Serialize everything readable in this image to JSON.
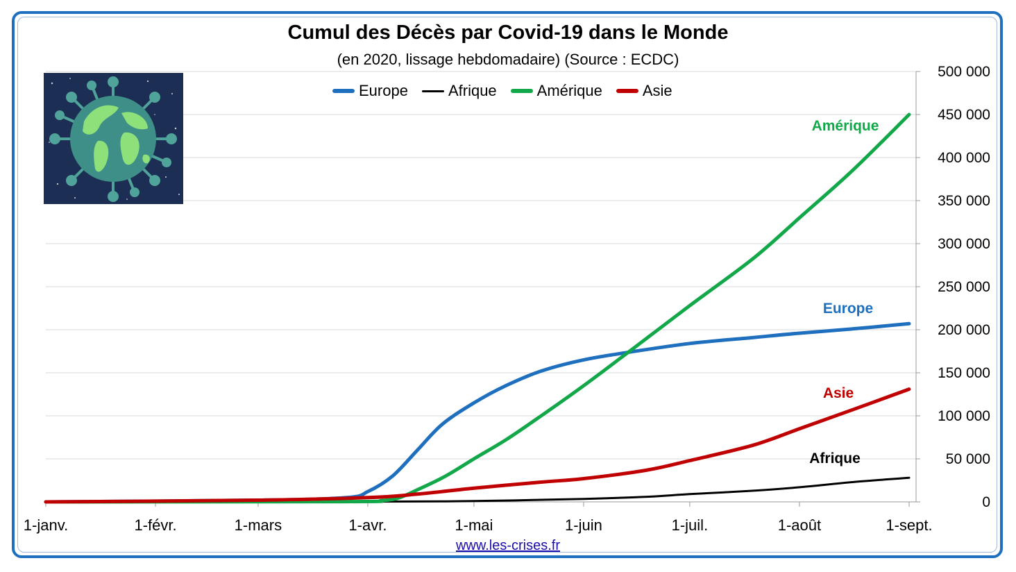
{
  "chart_data": {
    "type": "line",
    "title": "Cumul des Décès par Covid-19 dans le Monde",
    "subtitle": "(en 2020, lissage hebdomadaire) (Source : ECDC)",
    "x_ticks": [
      "1-janv.",
      "1-févr.",
      "1-mars",
      "1-avr.",
      "1-mai",
      "1-juin",
      "1-juil.",
      "1-août",
      "1-sept."
    ],
    "x_tick_days": [
      0,
      31,
      60,
      91,
      121,
      152,
      182,
      213,
      244
    ],
    "xlim": [
      0,
      244
    ],
    "y_ticks": [
      "0",
      "50 000",
      "100 000",
      "150 000",
      "200 000",
      "250 000",
      "300 000",
      "350 000",
      "400 000",
      "450 000",
      "500 000"
    ],
    "ylim": [
      0,
      500000
    ],
    "y_axis_side": "right",
    "grid": true,
    "legend_position": "top",
    "series": [
      {
        "name": "Europe",
        "color": "#1f6fbf",
        "label": "Europe",
        "x": [
          0,
          60,
          85,
          91,
          98,
          105,
          112,
          121,
          130,
          140,
          152,
          165,
          182,
          200,
          213,
          228,
          244
        ],
        "y": [
          0,
          2000,
          5000,
          12000,
          30000,
          60000,
          90000,
          115000,
          135000,
          152000,
          165000,
          174000,
          184000,
          191000,
          196000,
          201000,
          207000
        ]
      },
      {
        "name": "Afrique",
        "color": "#000000",
        "label": "Afrique",
        "x": [
          0,
          91,
          121,
          152,
          170,
          182,
          200,
          213,
          228,
          244
        ],
        "y": [
          0,
          300,
          1000,
          3500,
          6000,
          9000,
          13000,
          17000,
          23000,
          28000
        ]
      },
      {
        "name": "Amérique",
        "color": "#12a84a",
        "label": "Amérique",
        "x": [
          0,
          85,
          95,
          100,
          105,
          113,
          121,
          130,
          140,
          152,
          165,
          182,
          200,
          213,
          228,
          244
        ],
        "y": [
          0,
          300,
          1500,
          5000,
          14000,
          30000,
          50000,
          72000,
          100000,
          135000,
          175000,
          228000,
          283000,
          330000,
          385000,
          450000
        ]
      },
      {
        "name": "Asie",
        "color": "#c00000",
        "label": "Asie",
        "x": [
          0,
          60,
          91,
          105,
          121,
          140,
          152,
          170,
          182,
          200,
          213,
          228,
          244
        ],
        "y": [
          0,
          2000,
          5000,
          9000,
          16000,
          23000,
          27000,
          37000,
          48000,
          66000,
          85000,
          107000,
          131000
        ]
      }
    ]
  },
  "legend": {
    "items": [
      {
        "label": "Europe",
        "color": "#1f6fbf"
      },
      {
        "label": "Afrique",
        "color": "#000000"
      },
      {
        "label": "Amérique",
        "color": "#12a84a"
      },
      {
        "label": "Asie",
        "color": "#c00000"
      }
    ]
  },
  "footer": {
    "source_link": "www.les-crises.fr"
  },
  "image": {
    "icon": "globe-virus-icon"
  }
}
